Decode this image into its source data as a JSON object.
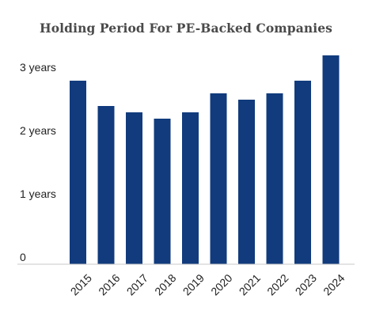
{
  "chart_data": {
    "type": "bar",
    "title": "Holding Period For PE-Backed Companies",
    "xlabel": "",
    "ylabel": "",
    "categories": [
      "2015",
      "2016",
      "2017",
      "2018",
      "2019",
      "2020",
      "2021",
      "2022",
      "2023",
      "2024"
    ],
    "values": [
      2.9,
      2.5,
      2.4,
      2.3,
      2.4,
      2.7,
      2.6,
      2.7,
      2.9,
      3.3
    ],
    "ylim": [
      0,
      3
    ],
    "yticks": [
      {
        "value": 0,
        "label": "0"
      },
      {
        "value": 1,
        "label": "1 years"
      },
      {
        "value": 2,
        "label": "2 years"
      },
      {
        "value": 3,
        "label": "3 years"
      }
    ],
    "grid": false,
    "legend": "none",
    "colors": {
      "bar": "#113b7d",
      "axis": "#c8c8c8",
      "tick_text": "#222222",
      "title": "#4a4a4a"
    }
  }
}
